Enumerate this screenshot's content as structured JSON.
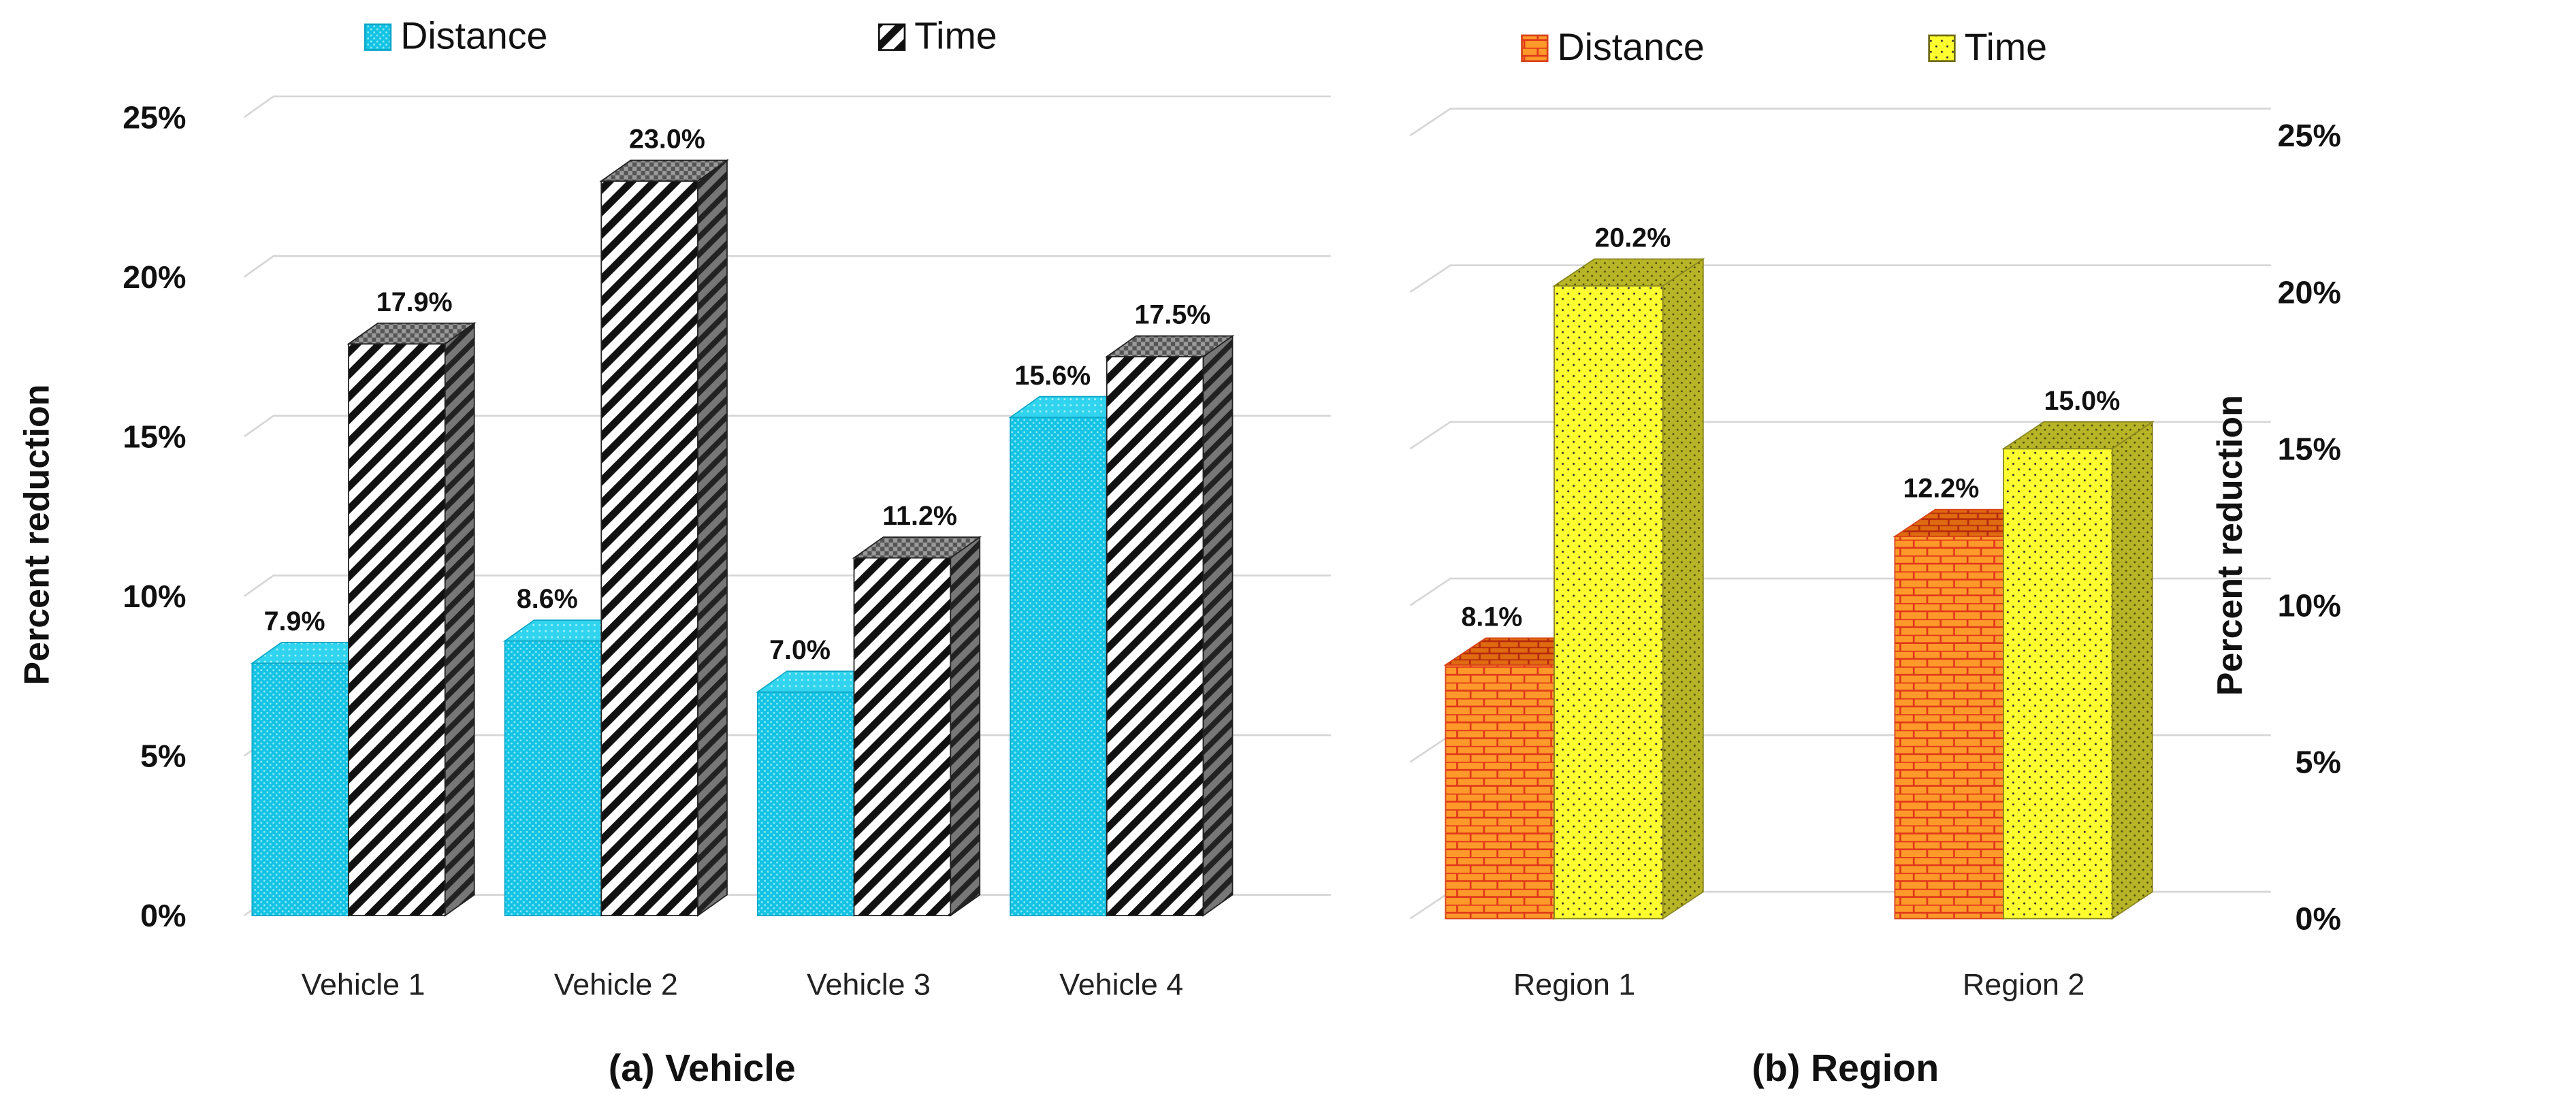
{
  "chart_data": [
    {
      "type": "bar",
      "caption": "(a)  Vehicle",
      "ylabel": "Percent reduction",
      "ylim": [
        0,
        25
      ],
      "yticks": [
        "0%",
        "5%",
        "10%",
        "15%",
        "20%",
        "25%"
      ],
      "categories": [
        "Vehicle 1",
        "Vehicle 2",
        "Vehicle 3",
        "Vehicle 4"
      ],
      "series": [
        {
          "name": "Distance",
          "values": [
            7.9,
            8.6,
            7.0,
            15.6
          ],
          "labels": [
            "7.9%",
            "8.6%",
            "7.0%",
            "15.6%"
          ],
          "color": "#1ec8e6",
          "pattern": "dots"
        },
        {
          "name": "Time",
          "values": [
            17.9,
            23.0,
            11.2,
            17.5
          ],
          "labels": [
            "17.9%",
            "23.0%",
            "11.2%",
            "17.5%"
          ],
          "color": "#ffffff",
          "pattern": "diagonal-stripes"
        }
      ],
      "legend": "top",
      "grid": true,
      "axis_side": "left"
    },
    {
      "type": "bar",
      "caption": "(b)  Region",
      "ylabel": "Percent reduction",
      "ylim": [
        0,
        25
      ],
      "yticks": [
        "0%",
        "5%",
        "10%",
        "15%",
        "20%",
        "25%"
      ],
      "categories": [
        "Region 1",
        "Region 2"
      ],
      "series": [
        {
          "name": "Distance",
          "values": [
            8.1,
            12.2
          ],
          "labels": [
            "8.1%",
            "12.2%"
          ],
          "color": "#ff8a1e",
          "pattern": "brick"
        },
        {
          "name": "Time",
          "values": [
            20.2,
            15.0
          ],
          "labels": [
            "20.2%",
            "15.0%"
          ],
          "color": "#ffff33",
          "pattern": "dots"
        }
      ],
      "legend": "top",
      "grid": true,
      "axis_side": "right"
    }
  ]
}
